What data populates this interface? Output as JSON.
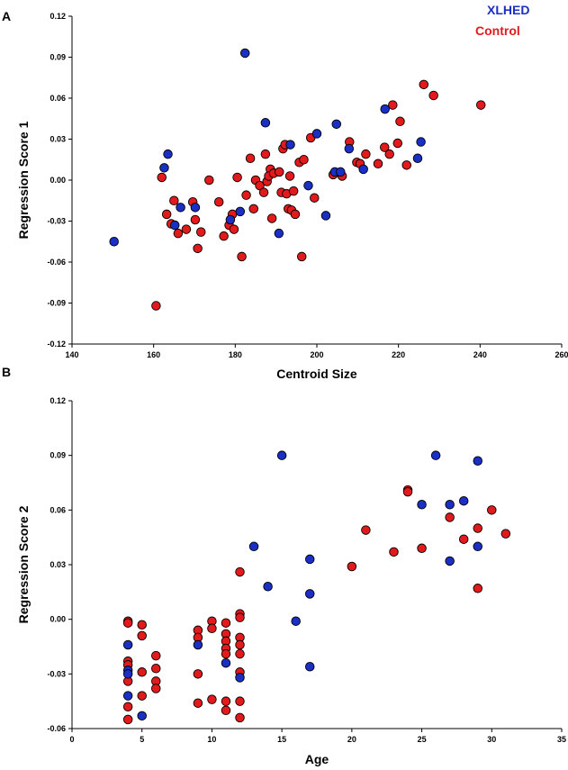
{
  "legend": [
    {
      "label": "XLHED",
      "color": "#1a2fc4"
    },
    {
      "label": "Control",
      "color": "#e31a1c"
    }
  ],
  "chart_data": [
    {
      "panel": "A",
      "type": "scatter",
      "xlabel": "Centroid Size",
      "ylabel": "Regression Score 1",
      "xlim": [
        140,
        260
      ],
      "ylim": [
        -0.12,
        0.12
      ],
      "xticks": [
        "140",
        "160",
        "180",
        "200",
        "220",
        "240",
        "260"
      ],
      "yticks": [
        "-0.12",
        "-0.09",
        "-0.06",
        "-0.03",
        "0.00",
        "0.03",
        "0.06",
        "0.09",
        "0.12"
      ],
      "series": [
        {
          "name": "XLHED",
          "color": "#1a2fc4",
          "points": [
            [
              150.3,
              -0.045
            ],
            [
              162.6,
              0.009
            ],
            [
              163.5,
              0.019
            ],
            [
              165.2,
              -0.033
            ],
            [
              166.6,
              -0.02
            ],
            [
              170.2,
              -0.02
            ],
            [
              178.8,
              -0.029
            ],
            [
              181.2,
              -0.023
            ],
            [
              182.4,
              0.093
            ],
            [
              187.4,
              0.042
            ],
            [
              190.7,
              -0.039
            ],
            [
              193.5,
              0.026
            ],
            [
              197.9,
              -0.004
            ],
            [
              200.0,
              0.034
            ],
            [
              202.2,
              -0.026
            ],
            [
              204.4,
              0.006
            ],
            [
              204.8,
              0.041
            ],
            [
              205.8,
              0.006
            ],
            [
              207.9,
              0.023
            ],
            [
              211.4,
              0.008
            ],
            [
              216.7,
              0.052
            ],
            [
              224.7,
              0.016
            ],
            [
              225.5,
              0.028
            ]
          ]
        },
        {
          "name": "Control",
          "color": "#e31a1c",
          "points": [
            [
              160.6,
              -0.092
            ],
            [
              162.0,
              0.002
            ],
            [
              163.2,
              -0.025
            ],
            [
              164.3,
              -0.032
            ],
            [
              165.0,
              -0.015
            ],
            [
              166.0,
              -0.039
            ],
            [
              168.0,
              -0.036
            ],
            [
              169.6,
              -0.016
            ],
            [
              170.2,
              -0.029
            ],
            [
              170.8,
              -0.05
            ],
            [
              171.6,
              -0.038
            ],
            [
              173.6,
              0.0
            ],
            [
              176.0,
              -0.016
            ],
            [
              177.2,
              -0.041
            ],
            [
              178.5,
              -0.033
            ],
            [
              179.3,
              -0.025
            ],
            [
              179.7,
              -0.036
            ],
            [
              180.5,
              0.002
            ],
            [
              181.6,
              -0.056
            ],
            [
              182.7,
              -0.011
            ],
            [
              183.7,
              0.016
            ],
            [
              184.5,
              -0.021
            ],
            [
              185.0,
              0.0
            ],
            [
              186.0,
              -0.004
            ],
            [
              187.0,
              -0.009
            ],
            [
              187.4,
              0.019
            ],
            [
              187.8,
              -0.001
            ],
            [
              188.6,
              0.008
            ],
            [
              188.2,
              0.003
            ],
            [
              189.0,
              -0.028
            ],
            [
              189.4,
              0.005
            ],
            [
              190.8,
              0.006
            ],
            [
              191.3,
              -0.009
            ],
            [
              191.7,
              0.023
            ],
            [
              192.2,
              0.026
            ],
            [
              192.6,
              -0.01
            ],
            [
              193.0,
              -0.021
            ],
            [
              193.4,
              0.003
            ],
            [
              193.8,
              -0.022
            ],
            [
              194.3,
              -0.008
            ],
            [
              194.7,
              -0.025
            ],
            [
              195.7,
              0.013
            ],
            [
              196.3,
              -0.056
            ],
            [
              196.8,
              0.015
            ],
            [
              198.5,
              0.031
            ],
            [
              199.4,
              -0.013
            ],
            [
              204.0,
              0.004
            ],
            [
              206.2,
              0.003
            ],
            [
              208.0,
              0.028
            ],
            [
              209.8,
              0.013
            ],
            [
              210.6,
              0.012
            ],
            [
              212.0,
              0.019
            ],
            [
              215.0,
              0.012
            ],
            [
              216.6,
              0.024
            ],
            [
              217.8,
              0.019
            ],
            [
              218.6,
              0.055
            ],
            [
              219.8,
              0.027
            ],
            [
              220.4,
              0.043
            ],
            [
              222.0,
              0.011
            ],
            [
              226.2,
              0.07
            ],
            [
              228.6,
              0.062
            ],
            [
              240.2,
              0.055
            ]
          ]
        }
      ]
    },
    {
      "panel": "B",
      "type": "scatter",
      "xlabel": "Age",
      "ylabel": "Regression Score 2",
      "xlim": [
        0,
        35
      ],
      "ylim": [
        -0.06,
        0.12
      ],
      "xticks": [
        "0",
        "5",
        "10",
        "15",
        "20",
        "25",
        "30",
        "35"
      ],
      "yticks": [
        "-0.06",
        "-0.03",
        "0.00",
        "0.03",
        "0.06",
        "0.09",
        "0.12"
      ],
      "series": [
        {
          "name": "XLHED",
          "color": "#1a2fc4",
          "points": [
            [
              4,
              -0.014
            ],
            [
              4,
              -0.028
            ],
            [
              4,
              -0.03
            ],
            [
              4,
              -0.042
            ],
            [
              5,
              -0.053
            ],
            [
              9,
              -0.014
            ],
            [
              11,
              -0.024
            ],
            [
              12,
              -0.032
            ],
            [
              13,
              0.04
            ],
            [
              14,
              0.018
            ],
            [
              15,
              0.09
            ],
            [
              16,
              -0.001
            ],
            [
              17,
              0.033
            ],
            [
              17,
              0.014
            ],
            [
              17,
              -0.026
            ],
            [
              25,
              0.063
            ],
            [
              26,
              0.09
            ],
            [
              27,
              0.063
            ],
            [
              27,
              0.032
            ],
            [
              28,
              0.065
            ],
            [
              29,
              0.087
            ],
            [
              29,
              0.04
            ]
          ]
        },
        {
          "name": "Control",
          "color": "#e31a1c",
          "points": [
            [
              4,
              -0.001
            ],
            [
              4,
              -0.002
            ],
            [
              4,
              -0.023
            ],
            [
              4,
              -0.025
            ],
            [
              4,
              -0.034
            ],
            [
              4,
              -0.048
            ],
            [
              4,
              -0.055
            ],
            [
              5,
              -0.003
            ],
            [
              5,
              -0.009
            ],
            [
              5,
              -0.029
            ],
            [
              5,
              -0.042
            ],
            [
              6,
              -0.02
            ],
            [
              6,
              -0.027
            ],
            [
              6,
              -0.034
            ],
            [
              6,
              -0.038
            ],
            [
              9,
              -0.006
            ],
            [
              9,
              -0.01
            ],
            [
              9,
              -0.03
            ],
            [
              9,
              -0.046
            ],
            [
              10,
              -0.001
            ],
            [
              10,
              -0.005
            ],
            [
              10,
              -0.044
            ],
            [
              11,
              -0.002
            ],
            [
              11,
              -0.008
            ],
            [
              11,
              -0.012
            ],
            [
              11,
              -0.016
            ],
            [
              11,
              -0.019
            ],
            [
              11,
              -0.045
            ],
            [
              11,
              -0.05
            ],
            [
              12,
              0.003
            ],
            [
              12,
              0.001
            ],
            [
              12,
              -0.01
            ],
            [
              12,
              -0.014
            ],
            [
              12,
              -0.019
            ],
            [
              12,
              -0.029
            ],
            [
              12,
              -0.045
            ],
            [
              12,
              -0.054
            ],
            [
              12,
              0.026
            ],
            [
              20,
              0.029
            ],
            [
              21,
              0.049
            ],
            [
              23,
              0.037
            ],
            [
              24,
              0.071
            ],
            [
              24,
              0.07
            ],
            [
              25,
              0.039
            ],
            [
              27,
              0.056
            ],
            [
              28,
              0.044
            ],
            [
              29,
              0.05
            ],
            [
              29,
              0.017
            ],
            [
              30,
              0.06
            ],
            [
              31,
              0.047
            ]
          ]
        }
      ]
    }
  ]
}
